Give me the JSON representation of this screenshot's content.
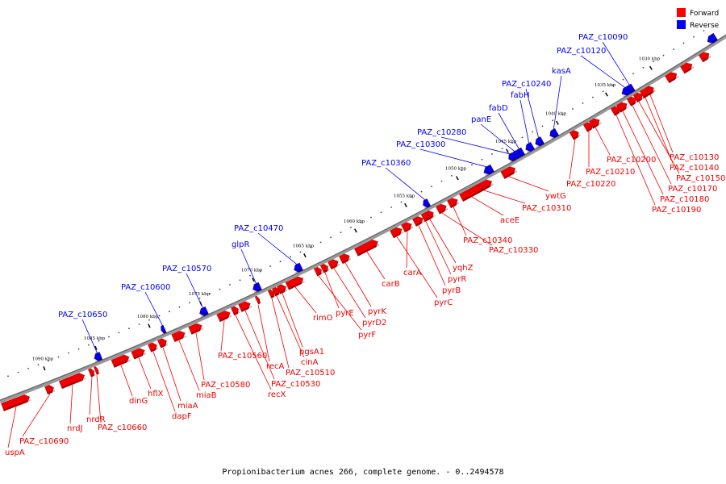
{
  "caption": "Propionibacterium acnes 266, complete genome. - 0..2494578",
  "legend": [
    {
      "label": "Forward",
      "color": "#ff0000"
    },
    {
      "label": "Reverse",
      "color": "#0000ff"
    }
  ],
  "colors": {
    "forward": "#ee0000",
    "reverse": "#0000ee",
    "backbone": "#808080"
  },
  "ticks": [
    "1030 kbp",
    "1035 kbp",
    "1040 kbp",
    "1045 kbp",
    "1050 kbp",
    "1055 kbp",
    "1060 kbp",
    "1065 kbp",
    "1070 kbp",
    "1075 kbp",
    "1080 kbp",
    "1085 kbp",
    "1090 kbp"
  ],
  "reverse_genes": [
    "PAZ_c10090",
    "PAZ_c10120",
    "kasA",
    "PAZ_c10240",
    "fabH",
    "fabD",
    "panE",
    "PAZ_c10280",
    "PAZ_c10300",
    "PAZ_c10360",
    "PAZ_c10470",
    "glpR",
    "PAZ_c10570",
    "PAZ_c10600",
    "PAZ_c10650"
  ],
  "forward_genes": [
    "PAZ_c10130",
    "PAZ_c10140",
    "PAZ_c10150",
    "PAZ_c10170",
    "PAZ_c10180",
    "PAZ_c10190",
    "PAZ_c10200",
    "PAZ_c10210",
    "PAZ_c10220",
    "ywtG",
    "PAZ_c10310",
    "aceE",
    "PAZ_c10340",
    "PAZ_c10330",
    "yqhZ",
    "pyrR",
    "carA",
    "pyrB",
    "pyrC",
    "carB",
    "pyrK",
    "pyrD2",
    "pyrE",
    "pyrF",
    "rimO",
    "pgsA1",
    "cinA",
    "PAZ_c10510",
    "recA",
    "PAZ_c10530",
    "recX",
    "PAZ_c10560",
    "PAZ_c10580",
    "miaB",
    "miaA",
    "dapF",
    "hflX",
    "dinG",
    "PAZ_c10660",
    "nrdR",
    "nrdJ",
    "PAZ_c10690",
    "uspA"
  ]
}
